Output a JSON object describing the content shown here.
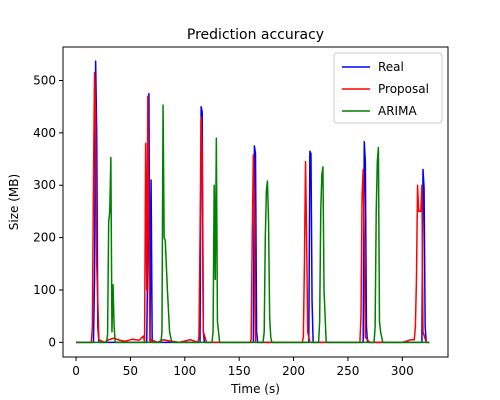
{
  "chart_data": {
    "type": "line",
    "title": "Prediction accuracy",
    "xlabel": "Time (s)",
    "ylabel": "Size (MB)",
    "xlim": [
      -12,
      342
    ],
    "ylim": [
      -28,
      564
    ],
    "xticks": [
      0,
      50,
      100,
      150,
      200,
      250,
      300
    ],
    "yticks": [
      0,
      100,
      200,
      300,
      400,
      500
    ],
    "legend_position": "top-right",
    "series": [
      {
        "name": "Real",
        "color": "#0000ff",
        "x": [
          0,
          16,
          17,
          18,
          19,
          20,
          21,
          65,
          66,
          67,
          68,
          69,
          70,
          114,
          115,
          116,
          117,
          118,
          163,
          164,
          165,
          166,
          167,
          214,
          215,
          216,
          217,
          218,
          264,
          265,
          266,
          267,
          268,
          318,
          319,
          320,
          321,
          322,
          325
        ],
        "y": [
          0,
          0,
          120,
          537,
          400,
          30,
          0,
          0,
          180,
          475,
          0,
          310,
          0,
          0,
          450,
          440,
          20,
          0,
          0,
          375,
          360,
          20,
          0,
          0,
          365,
          360,
          80,
          0,
          0,
          383,
          345,
          30,
          0,
          0,
          330,
          295,
          30,
          0,
          0
        ]
      },
      {
        "name": "Proposal",
        "color": "#ff0000",
        "x": [
          0,
          14,
          15,
          16,
          17,
          18,
          19,
          21,
          26,
          30,
          35,
          40,
          45,
          52,
          58,
          62,
          63,
          64,
          65,
          66,
          67,
          68,
          69,
          75,
          80,
          85,
          95,
          105,
          112,
          113,
          114,
          115,
          116,
          117,
          120,
          130,
          160,
          161,
          162,
          163,
          164,
          165,
          175,
          195,
          208,
          209,
          210,
          211,
          212,
          213,
          215,
          240,
          255,
          261,
          262,
          263,
          264,
          265,
          266,
          270,
          285,
          300,
          308,
          310,
          311,
          312,
          313,
          314,
          315,
          317,
          318,
          319,
          322,
          325
        ],
        "y": [
          0,
          0,
          30,
          300,
          515,
          430,
          150,
          5,
          0,
          5,
          8,
          4,
          2,
          6,
          4,
          12,
          0,
          380,
          100,
          470,
          200,
          0,
          5,
          0,
          5,
          3,
          0,
          5,
          0,
          10,
          200,
          430,
          350,
          20,
          0,
          0,
          0,
          5,
          200,
          358,
          250,
          0,
          0,
          0,
          0,
          10,
          150,
          345,
          200,
          20,
          0,
          0,
          0,
          0,
          50,
          280,
          330,
          200,
          10,
          0,
          0,
          0,
          5,
          5,
          5,
          30,
          120,
          300,
          250,
          250,
          300,
          20,
          0,
          0
        ]
      },
      {
        "name": "ARIMA",
        "color": "#008000",
        "x": [
          0,
          28,
          29,
          30,
          31,
          32,
          33,
          34,
          35,
          36,
          38,
          78,
          79,
          80,
          81,
          82,
          84,
          86,
          88,
          125,
          126,
          127,
          128,
          129,
          130,
          132,
          172,
          173,
          174,
          175,
          176,
          177,
          178,
          179,
          180,
          223,
          224,
          225,
          226,
          227,
          228,
          230,
          274,
          275,
          276,
          277,
          278,
          279,
          280,
          282,
          325
        ],
        "y": [
          0,
          0,
          15,
          230,
          250,
          353,
          20,
          110,
          30,
          0,
          0,
          0,
          20,
          453,
          200,
          195,
          100,
          20,
          0,
          0,
          20,
          300,
          120,
          390,
          40,
          0,
          0,
          20,
          200,
          290,
          308,
          230,
          50,
          10,
          0,
          0,
          40,
          250,
          320,
          335,
          100,
          0,
          0,
          30,
          250,
          345,
          372,
          40,
          20,
          0,
          0
        ]
      }
    ]
  }
}
